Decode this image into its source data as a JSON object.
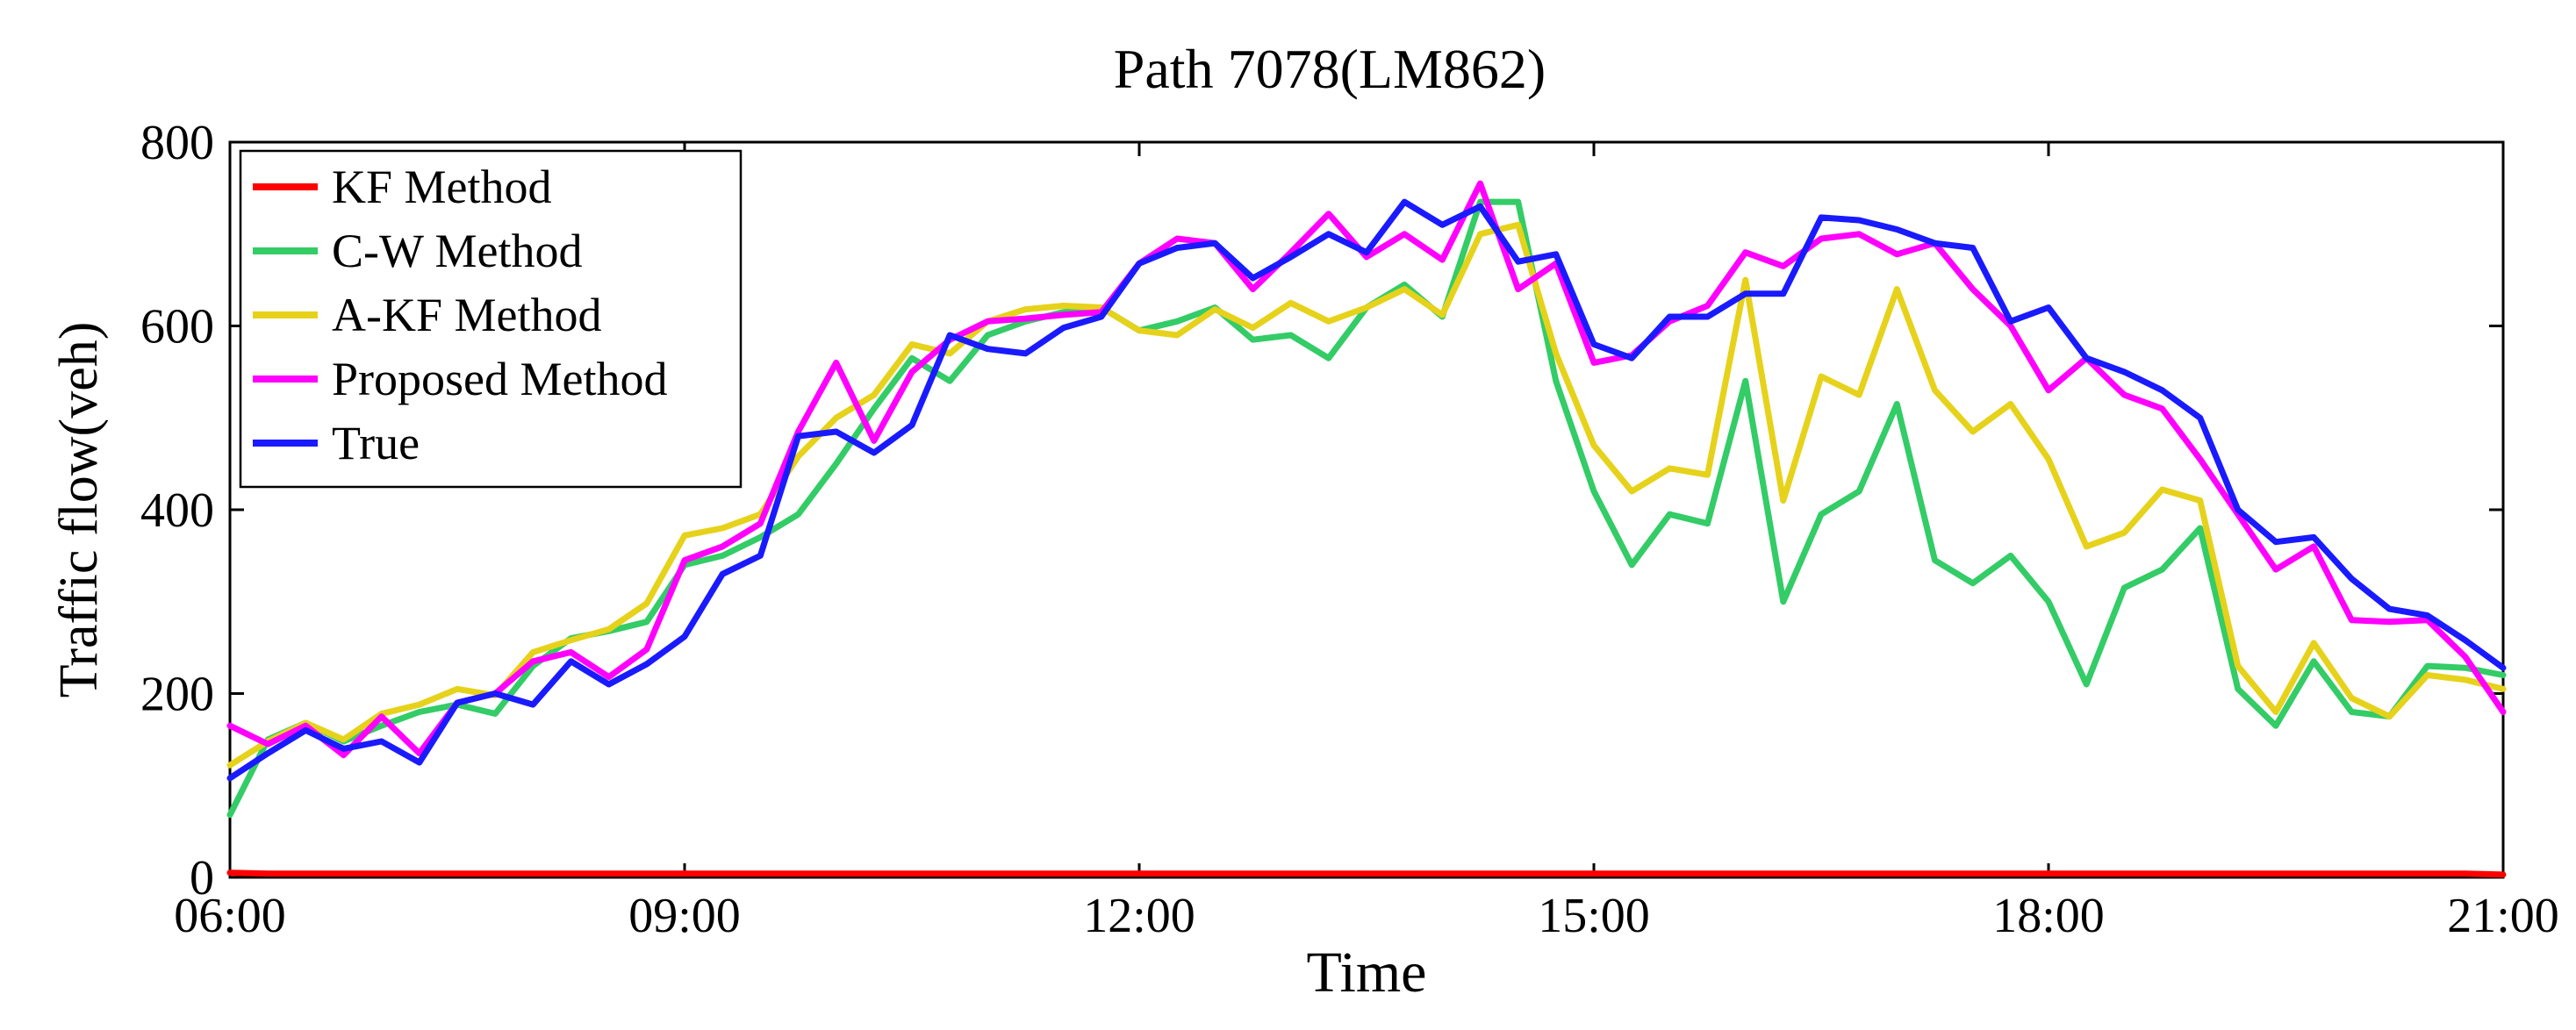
{
  "chart_data": {
    "type": "line",
    "title": "Path 7078(LM862)",
    "xlabel": "Time",
    "ylabel": "Traffic flow(veh)",
    "xlim": [
      "06:00",
      "21:00"
    ],
    "ylim": [
      0,
      800
    ],
    "xticks": [
      "06:00",
      "09:00",
      "12:00",
      "15:00",
      "18:00",
      "21:00"
    ],
    "yticks": [
      0,
      200,
      400,
      600,
      800
    ],
    "grid": false,
    "legend_position": "top-left",
    "x": [
      "06:00",
      "06:15",
      "06:30",
      "06:45",
      "07:00",
      "07:15",
      "07:30",
      "07:45",
      "08:00",
      "08:15",
      "08:30",
      "08:45",
      "09:00",
      "09:15",
      "09:30",
      "09:45",
      "10:00",
      "10:15",
      "10:30",
      "10:45",
      "11:00",
      "11:15",
      "11:30",
      "11:45",
      "12:00",
      "12:15",
      "12:30",
      "12:45",
      "13:00",
      "13:15",
      "13:30",
      "13:45",
      "14:00",
      "14:15",
      "14:30",
      "14:45",
      "15:00",
      "15:15",
      "15:30",
      "15:45",
      "16:00",
      "16:15",
      "16:30",
      "16:45",
      "17:00",
      "17:15",
      "17:30",
      "17:45",
      "18:00",
      "18:15",
      "18:30",
      "18:45",
      "19:00",
      "19:15",
      "19:30",
      "19:45",
      "20:00",
      "20:15",
      "20:30",
      "20:45",
      "21:00"
    ],
    "series": [
      {
        "name": "KF Method",
        "color": "#ff0000",
        "values": [
          5,
          4,
          4,
          4,
          4,
          4,
          4,
          4,
          4,
          4,
          4,
          4,
          4,
          4,
          4,
          4,
          4,
          4,
          4,
          4,
          4,
          4,
          4,
          4,
          4,
          4,
          4,
          4,
          4,
          4,
          4,
          4,
          4,
          4,
          4,
          4,
          4,
          4,
          4,
          4,
          4,
          4,
          4,
          4,
          4,
          4,
          4,
          4,
          4,
          4,
          4,
          4,
          4,
          4,
          4,
          4,
          4,
          4,
          4,
          4,
          3
        ]
      },
      {
        "name": "C-W Method",
        "color": "#33cc66",
        "values": [
          68,
          150,
          168,
          148,
          165,
          180,
          188,
          178,
          230,
          260,
          268,
          278,
          340,
          350,
          370,
          395,
          450,
          510,
          565,
          540,
          590,
          605,
          615,
          620,
          595,
          605,
          620,
          585,
          590,
          565,
          620,
          645,
          610,
          735,
          735,
          540,
          420,
          340,
          395,
          385,
          540,
          300,
          395,
          420,
          515,
          345,
          320,
          350,
          300,
          210,
          315,
          335,
          380,
          205,
          165,
          235,
          180,
          175,
          230,
          228,
          220
        ]
      },
      {
        "name": "A-KF Method",
        "color": "#e6d21a",
        "values": [
          122,
          148,
          168,
          150,
          178,
          188,
          205,
          198,
          245,
          258,
          270,
          298,
          372,
          380,
          395,
          458,
          500,
          525,
          580,
          570,
          605,
          618,
          622,
          620,
          595,
          590,
          618,
          598,
          625,
          605,
          620,
          640,
          612,
          700,
          710,
          570,
          470,
          420,
          445,
          438,
          650,
          410,
          545,
          525,
          640,
          530,
          485,
          515,
          455,
          360,
          375,
          422,
          410,
          230,
          180,
          255,
          195,
          175,
          220,
          215,
          205
        ]
      },
      {
        "name": "Proposed Method",
        "color": "#ff00ff",
        "values": [
          165,
          145,
          165,
          133,
          175,
          135,
          190,
          200,
          235,
          245,
          218,
          248,
          345,
          360,
          385,
          485,
          560,
          475,
          550,
          585,
          605,
          608,
          612,
          615,
          668,
          695,
          690,
          640,
          680,
          722,
          675,
          700,
          672,
          755,
          640,
          668,
          560,
          568,
          605,
          622,
          680,
          665,
          695,
          700,
          678,
          690,
          640,
          600,
          530,
          565,
          525,
          510,
          455,
          395,
          335,
          360,
          280,
          278,
          280,
          240,
          180
        ]
      },
      {
        "name": "True",
        "color": "#1a1aff",
        "values": [
          108,
          135,
          160,
          140,
          148,
          125,
          190,
          200,
          188,
          235,
          210,
          232,
          262,
          330,
          350,
          480,
          485,
          462,
          492,
          590,
          575,
          570,
          598,
          610,
          668,
          685,
          690,
          652,
          675,
          700,
          680,
          735,
          710,
          730,
          670,
          678,
          580,
          565,
          610,
          610,
          635,
          635,
          718,
          715,
          705,
          690,
          685,
          605,
          620,
          565,
          550,
          530,
          500,
          400,
          365,
          370,
          325,
          292,
          285,
          258,
          228
        ]
      }
    ]
  }
}
